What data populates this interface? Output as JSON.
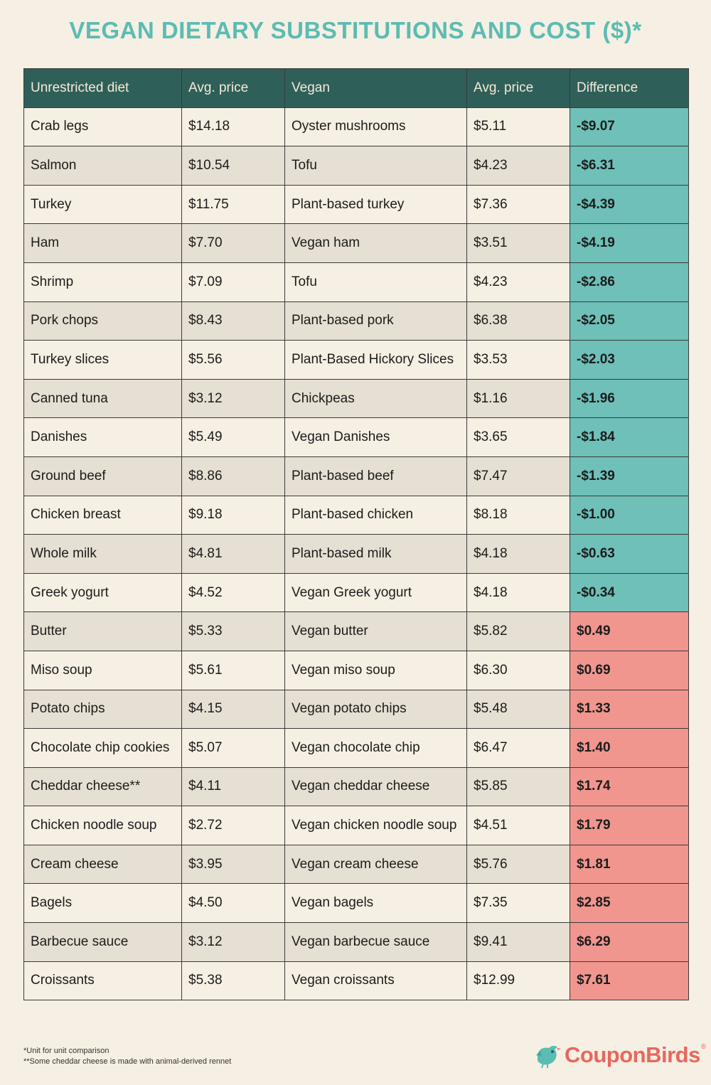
{
  "title": "VEGAN DIETARY SUBSTITUTIONS AND COST ($)*",
  "colors": {
    "title": "#5bbcb3",
    "header_bg": "#2f5f59",
    "negative": "#6ec0b8",
    "positive": "#f0968f",
    "brand": "#e8675c"
  },
  "table": {
    "headers": [
      "Unrestricted diet",
      "Avg. price",
      "Vegan",
      "Avg. price",
      "Difference"
    ],
    "rows": [
      {
        "item": "Crab legs",
        "price": "$14.18",
        "vegan": "Oyster mushrooms",
        "vegan_price": "$5.11",
        "difference": "-$9.07"
      },
      {
        "item": "Salmon",
        "price": "$10.54",
        "vegan": "Tofu",
        "vegan_price": "$4.23",
        "difference": "-$6.31"
      },
      {
        "item": "Turkey",
        "price": "$11.75",
        "vegan": "Plant-based turkey",
        "vegan_price": "$7.36",
        "difference": "-$4.39"
      },
      {
        "item": "Ham",
        "price": "$7.70",
        "vegan": "Vegan ham",
        "vegan_price": "$3.51",
        "difference": "-$4.19"
      },
      {
        "item": "Shrimp",
        "price": "$7.09",
        "vegan": "Tofu",
        "vegan_price": "$4.23",
        "difference": "-$2.86"
      },
      {
        "item": "Pork chops",
        "price": "$8.43",
        "vegan": "Plant-based pork",
        "vegan_price": "$6.38",
        "difference": "-$2.05"
      },
      {
        "item": "Turkey slices",
        "price": "$5.56",
        "vegan": "Plant-Based Hickory Slices",
        "vegan_price": "$3.53",
        "difference": "-$2.03"
      },
      {
        "item": "Canned tuna",
        "price": "$3.12",
        "vegan": "Chickpeas",
        "vegan_price": "$1.16",
        "difference": "-$1.96"
      },
      {
        "item": "Danishes",
        "price": "$5.49",
        "vegan": "Vegan Danishes",
        "vegan_price": "$3.65",
        "difference": "-$1.84"
      },
      {
        "item": "Ground beef",
        "price": "$8.86",
        "vegan": "Plant-based beef",
        "vegan_price": "$7.47",
        "difference": "-$1.39"
      },
      {
        "item": "Chicken breast",
        "price": "$9.18",
        "vegan": "Plant-based chicken",
        "vegan_price": "$8.18",
        "difference": "-$1.00"
      },
      {
        "item": "Whole milk",
        "price": "$4.81",
        "vegan": "Plant-based milk",
        "vegan_price": "$4.18",
        "difference": "-$0.63"
      },
      {
        "item": "Greek yogurt",
        "price": "$4.52",
        "vegan": "Vegan Greek yogurt",
        "vegan_price": "$4.18",
        "difference": "-$0.34"
      },
      {
        "item": "Butter",
        "price": "$5.33",
        "vegan": "Vegan butter",
        "vegan_price": "$5.82",
        "difference": "$0.49"
      },
      {
        "item": "Miso soup",
        "price": "$5.61",
        "vegan": "Vegan miso soup",
        "vegan_price": "$6.30",
        "difference": "$0.69"
      },
      {
        "item": "Potato chips",
        "price": "$4.15",
        "vegan": "Vegan potato chips",
        "vegan_price": "$5.48",
        "difference": "$1.33"
      },
      {
        "item": "Chocolate chip cookies",
        "price": "$5.07",
        "vegan": "Vegan chocolate chip",
        "vegan_price": "$6.47",
        "difference": "$1.40"
      },
      {
        "item": "Cheddar cheese**",
        "price": "$4.11",
        "vegan": "Vegan cheddar cheese",
        "vegan_price": "$5.85",
        "difference": "$1.74"
      },
      {
        "item": "Chicken noodle soup",
        "price": "$2.72",
        "vegan": "Vegan chicken noodle soup",
        "vegan_price": "$4.51",
        "difference": "$1.79"
      },
      {
        "item": "Cream cheese",
        "price": "$3.95",
        "vegan": "Vegan cream cheese",
        "vegan_price": "$5.76",
        "difference": "$1.81"
      },
      {
        "item": "Bagels",
        "price": "$4.50",
        "vegan": "Vegan bagels",
        "vegan_price": "$7.35",
        "difference": "$2.85"
      },
      {
        "item": "Barbecue sauce",
        "price": "$3.12",
        "vegan": "Vegan barbecue sauce",
        "vegan_price": "$9.41",
        "difference": "$6.29"
      },
      {
        "item": "Croissants",
        "price": "$5.38",
        "vegan": "Vegan croissants",
        "vegan_price": "$12.99",
        "difference": "$7.61"
      }
    ]
  },
  "footnotes": [
    "*Unit for unit comparison",
    "**Some cheddar cheese is made with animal-derived rennet"
  ],
  "logo": {
    "text": "CouponBirds",
    "mark": "®",
    "icon": "bird-icon"
  }
}
